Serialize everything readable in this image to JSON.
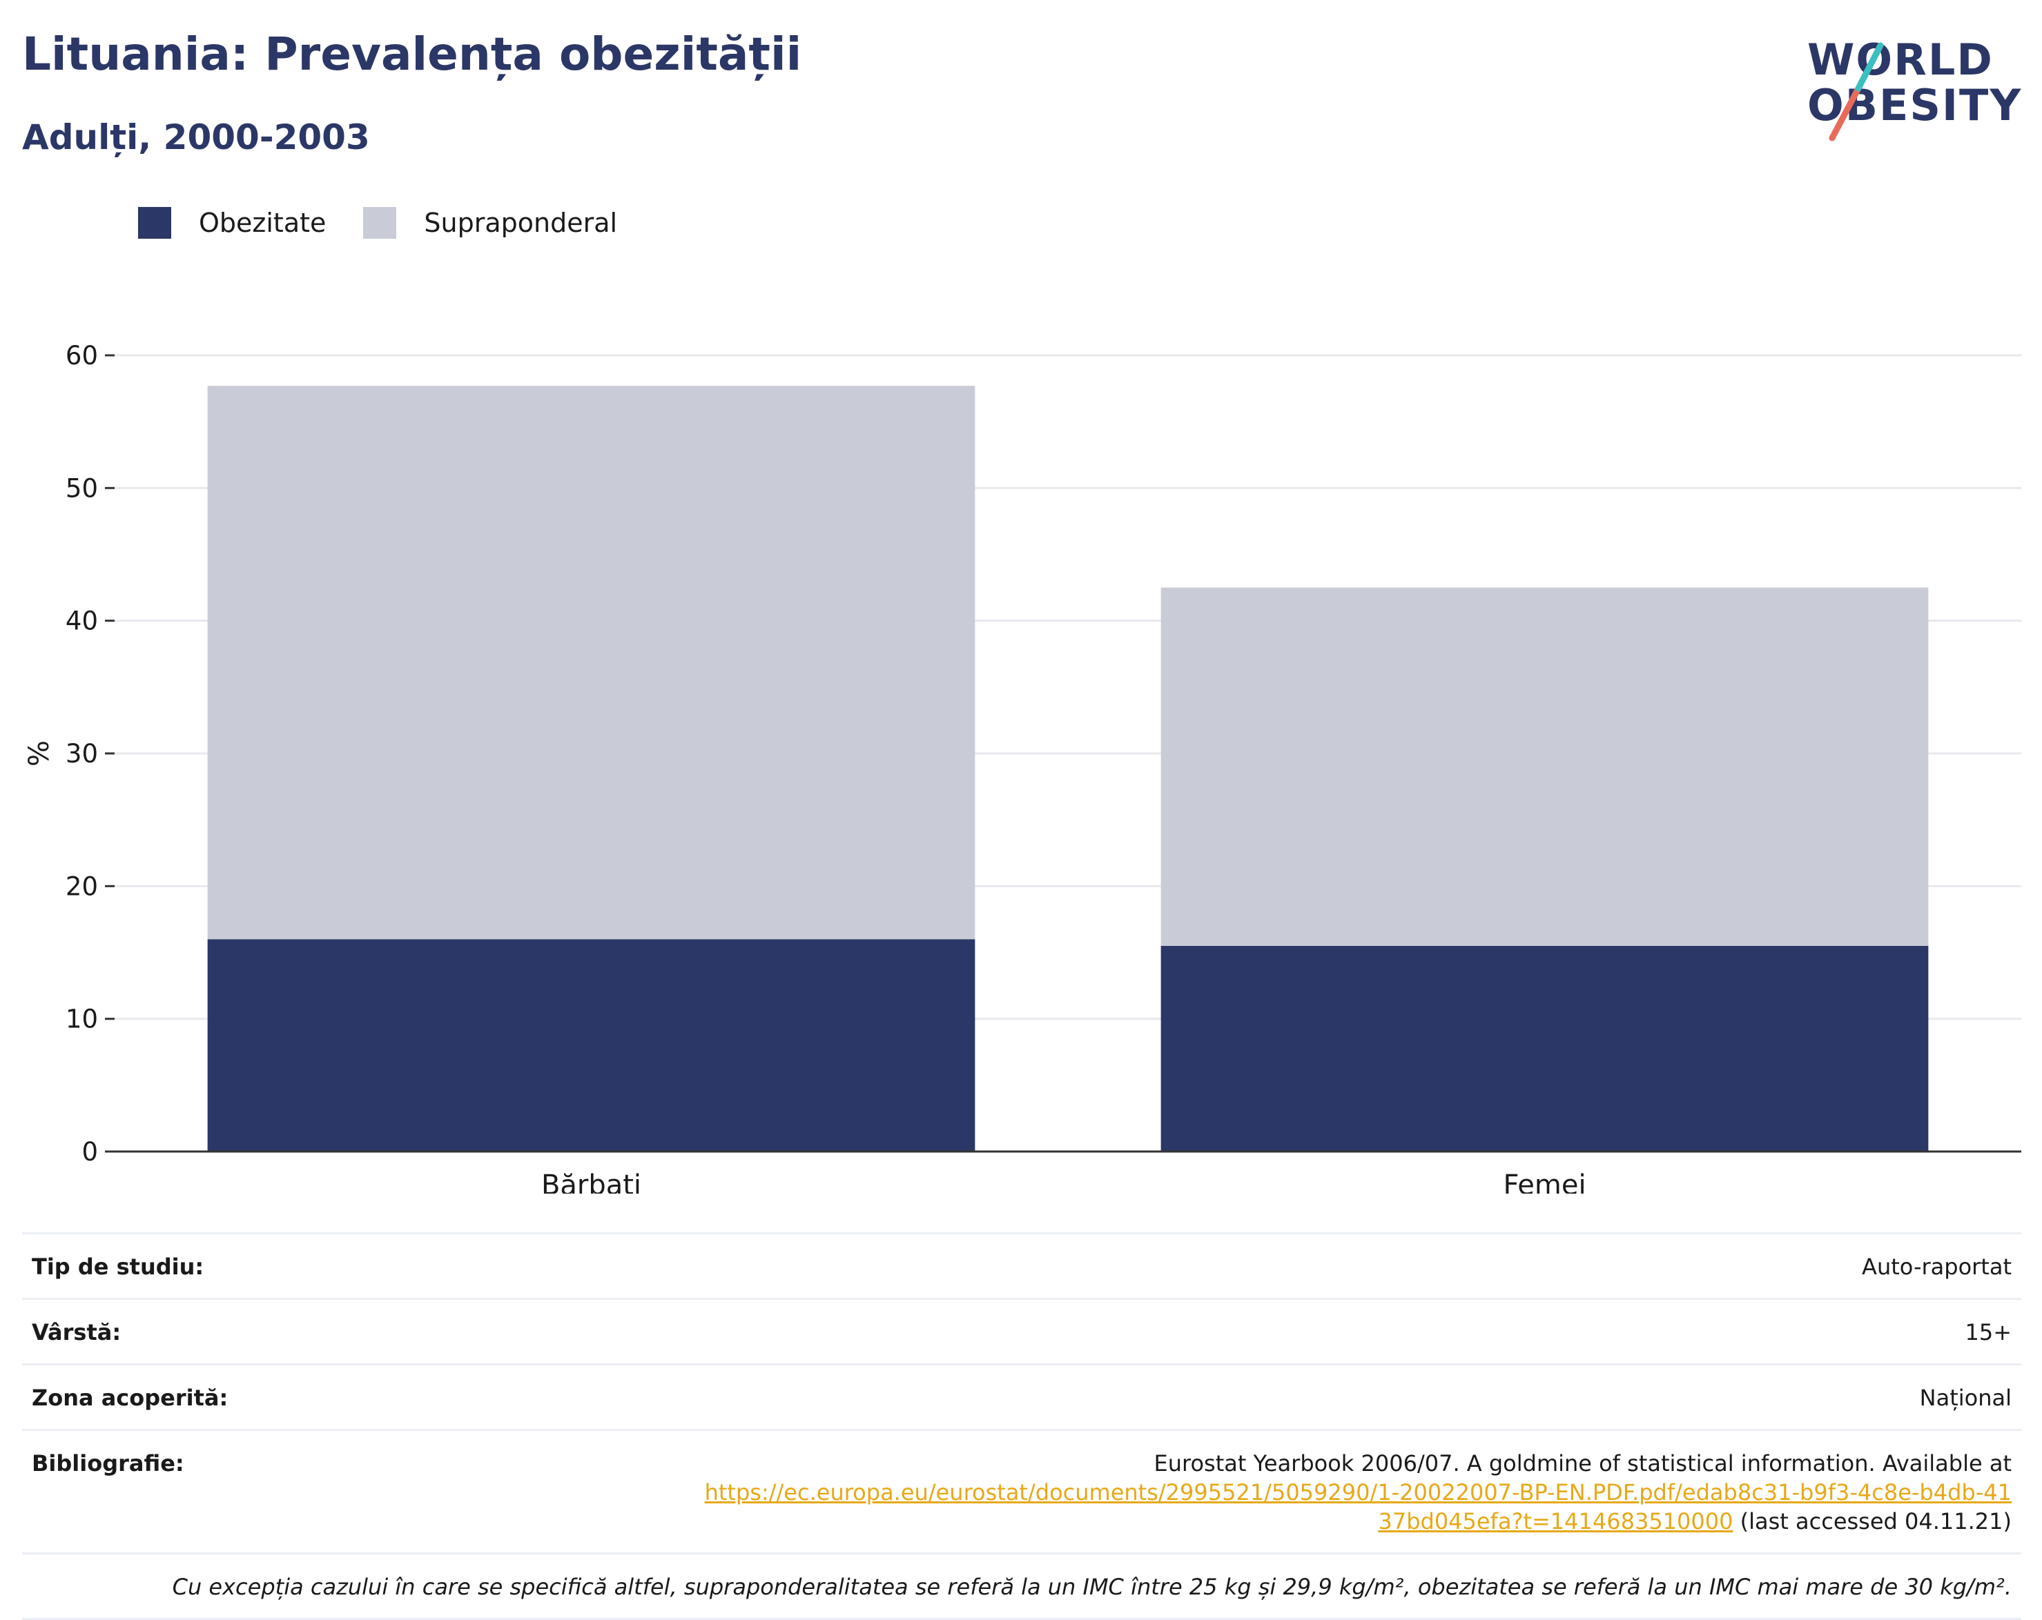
{
  "header": {
    "title": "Lituania: Prevalența obezității",
    "subtitle": "Adulți, 2000-2003"
  },
  "logo": {
    "line1": "WORLD",
    "line2": "OBESITY"
  },
  "colors": {
    "obesity": "#2b3766",
    "overweight": "#c9ccd7",
    "brand_teal": "#3bbfc0",
    "brand_coral": "#e76b5b",
    "link": "#e7a817"
  },
  "chart_data": {
    "type": "bar",
    "stacked": true,
    "categories": [
      "Bărbați",
      "Femei"
    ],
    "series": [
      {
        "name": "Obezitate",
        "values": [
          16.0,
          15.5
        ]
      },
      {
        "name": "Supraponderal",
        "values": [
          41.7,
          27.0
        ]
      }
    ],
    "ylabel": "%",
    "ylim": [
      0,
      60
    ],
    "yticks": [
      0,
      10,
      20,
      30,
      40,
      50,
      60
    ],
    "grid": true,
    "legend_position": "top-left"
  },
  "info": {
    "study_type_label": "Tip de studiu:",
    "study_type_value": "Auto-raportat",
    "age_label": "Vârstă:",
    "age_value": "15+",
    "area_label": "Zona acoperită:",
    "area_value": "Național",
    "bibliography_label": "Bibliografie:",
    "bibliography_text": "Eurostat Yearbook 2006/07. A goldmine of statistical information. Available at",
    "bibliography_link": "https://ec.europa.eu/eurostat/documents/2995521/5059290/1-20022007-BP-EN.PDF.pdf/edab8c31-b9f3-4c8e-b4db-4137bd045efa?t=1414683510000",
    "bibliography_suffix": "(last accessed 04.11.21)",
    "note": "Cu excepția cazului în care se specifică altfel, supraponderalitatea se referă la un IMC între 25 kg și 29,9 kg/m², obezitatea se referă la un IMC mai mare de 30 kg/m²."
  }
}
